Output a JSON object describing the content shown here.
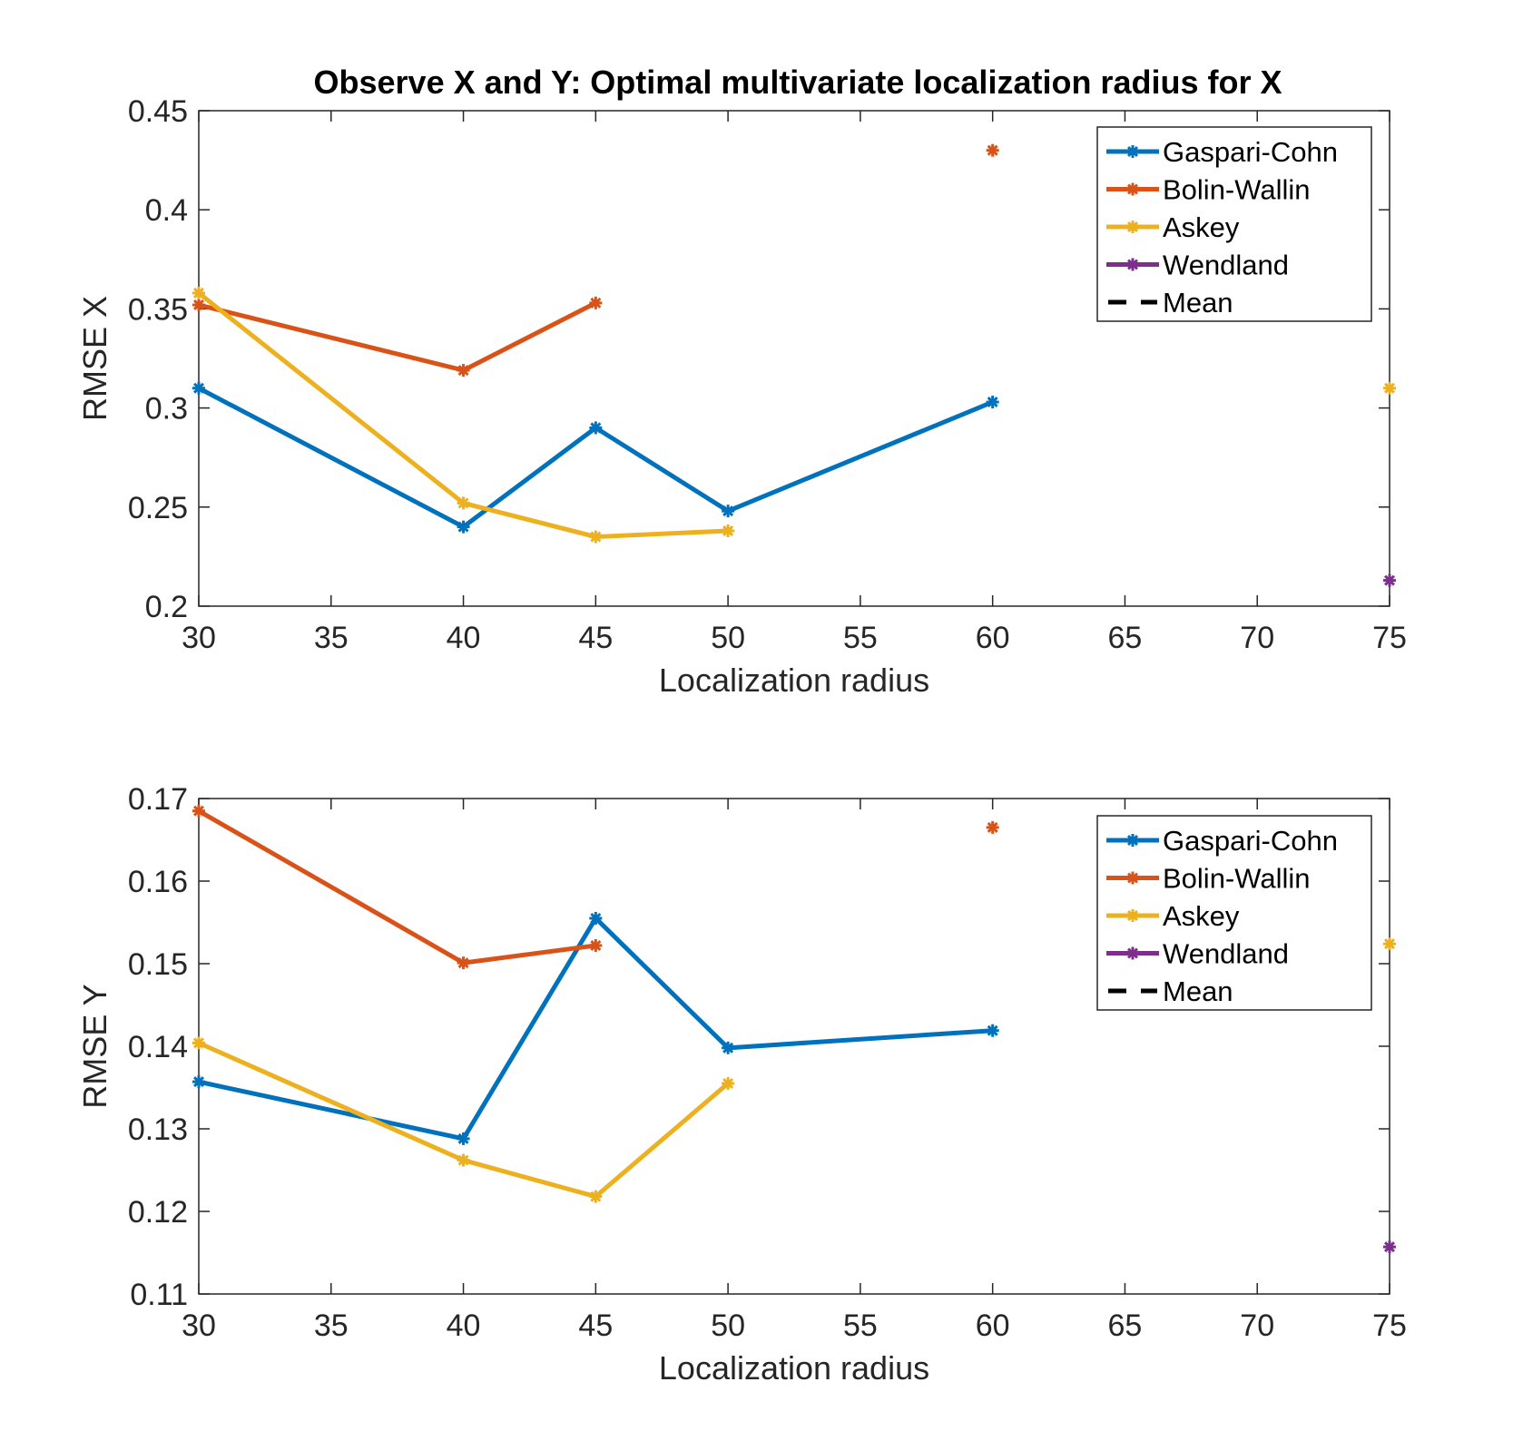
{
  "figure": {
    "title": "Observe X and Y: Optimal multivariate localization radius for X"
  },
  "chart_data": [
    {
      "type": "line",
      "title": "Observe X and Y: Optimal multivariate localization radius for X",
      "xlabel": "Localization radius",
      "ylabel": "RMSE X",
      "xlim": [
        30,
        75
      ],
      "ylim": [
        0.2,
        0.45
      ],
      "xticks": [
        30,
        35,
        40,
        45,
        50,
        55,
        60,
        65,
        70,
        75
      ],
      "xtick_labels": [
        "30",
        "35",
        "40",
        "45",
        "50",
        "55",
        "60",
        "65",
        "70",
        "75"
      ],
      "yticks": [
        0.2,
        0.25,
        0.3,
        0.35,
        0.4,
        0.45
      ],
      "ytick_labels": [
        "0.2",
        "0.25",
        "0.3",
        "0.35",
        "0.4",
        "0.45"
      ],
      "grid": false,
      "legend_position": "top-right",
      "legend": [
        "Gaspari-Cohn",
        "Bolin-Wallin",
        "Askey",
        "Wendland",
        "Mean"
      ],
      "series": [
        {
          "name": "Gaspari-Cohn",
          "color": "#0072BD",
          "style": "solid",
          "marker": "asterisk",
          "x": [
            30,
            40,
            45,
            50,
            60
          ],
          "y": [
            0.31,
            0.24,
            0.29,
            0.248,
            0.303
          ]
        },
        {
          "name": "Bolin-Wallin",
          "color": "#D95319",
          "style": "solid",
          "marker": "asterisk",
          "x": [
            30,
            40,
            45
          ],
          "y": [
            0.352,
            0.319,
            0.353
          ]
        },
        {
          "name": "Bolin-Wallin",
          "color": "#D95319",
          "style": "none",
          "marker": "asterisk",
          "in_legend": false,
          "x": [
            60
          ],
          "y": [
            0.43
          ]
        },
        {
          "name": "Askey",
          "color": "#EDB120",
          "style": "solid",
          "marker": "asterisk",
          "x": [
            30,
            40,
            45,
            50
          ],
          "y": [
            0.358,
            0.252,
            0.235,
            0.238
          ]
        },
        {
          "name": "Askey",
          "color": "#EDB120",
          "style": "none",
          "marker": "asterisk",
          "in_legend": false,
          "x": [
            75
          ],
          "y": [
            0.31
          ]
        },
        {
          "name": "Wendland",
          "color": "#7E2F8E",
          "style": "none",
          "marker": "asterisk",
          "x": [
            75
          ],
          "y": [
            0.213
          ]
        },
        {
          "name": "Mean",
          "color": "#000000",
          "style": "dashed",
          "marker": "none",
          "x": [],
          "y": []
        }
      ]
    },
    {
      "type": "line",
      "title": "",
      "xlabel": "Localization radius",
      "ylabel": "RMSE Y",
      "xlim": [
        30,
        75
      ],
      "ylim": [
        0.11,
        0.17
      ],
      "xticks": [
        30,
        35,
        40,
        45,
        50,
        55,
        60,
        65,
        70,
        75
      ],
      "xtick_labels": [
        "30",
        "35",
        "40",
        "45",
        "50",
        "55",
        "60",
        "65",
        "70",
        "75"
      ],
      "yticks": [
        0.11,
        0.12,
        0.13,
        0.14,
        0.15,
        0.16,
        0.17
      ],
      "ytick_labels": [
        "0.11",
        "0.12",
        "0.13",
        "0.14",
        "0.15",
        "0.16",
        "0.17"
      ],
      "grid": false,
      "legend_position": "top-right",
      "legend": [
        "Gaspari-Cohn",
        "Bolin-Wallin",
        "Askey",
        "Wendland",
        "Mean"
      ],
      "series": [
        {
          "name": "Gaspari-Cohn",
          "color": "#0072BD",
          "style": "solid",
          "marker": "asterisk",
          "x": [
            30,
            40,
            45,
            50,
            60
          ],
          "y": [
            0.1357,
            0.1288,
            0.1555,
            0.1398,
            0.1419
          ]
        },
        {
          "name": "Bolin-Wallin",
          "color": "#D95319",
          "style": "solid",
          "marker": "asterisk",
          "x": [
            30,
            40,
            45
          ],
          "y": [
            0.1685,
            0.1501,
            0.1522
          ]
        },
        {
          "name": "Bolin-Wallin",
          "color": "#D95319",
          "style": "none",
          "marker": "asterisk",
          "in_legend": false,
          "x": [
            60
          ],
          "y": [
            0.1665
          ]
        },
        {
          "name": "Askey",
          "color": "#EDB120",
          "style": "solid",
          "marker": "asterisk",
          "x": [
            30,
            40,
            45,
            50
          ],
          "y": [
            0.1404,
            0.1262,
            0.1218,
            0.1355
          ]
        },
        {
          "name": "Askey",
          "color": "#EDB120",
          "style": "none",
          "marker": "asterisk",
          "in_legend": false,
          "x": [
            75
          ],
          "y": [
            0.1524
          ]
        },
        {
          "name": "Wendland",
          "color": "#7E2F8E",
          "style": "none",
          "marker": "asterisk",
          "x": [
            75
          ],
          "y": [
            0.1157
          ]
        },
        {
          "name": "Mean",
          "color": "#000000",
          "style": "dashed",
          "marker": "none",
          "x": [],
          "y": []
        }
      ]
    }
  ]
}
